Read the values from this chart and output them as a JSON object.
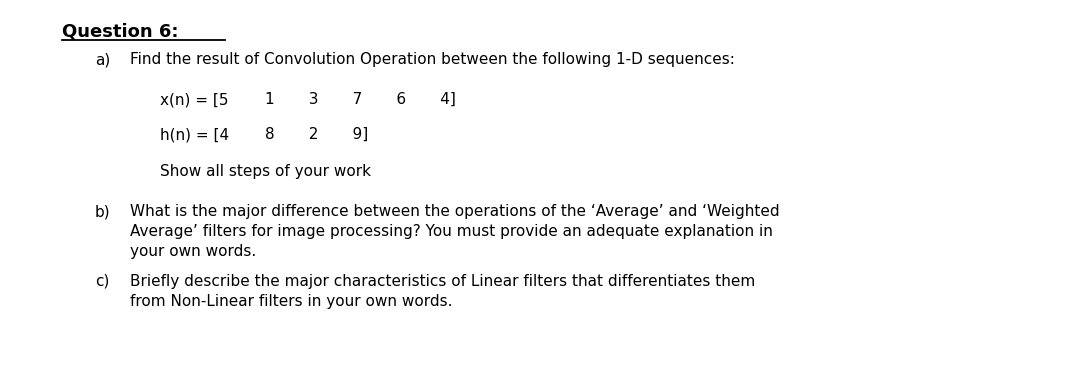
{
  "bg_color": "#ffffff",
  "title": "Question 6:",
  "part_a_label": "a)",
  "part_a_text": "Find the result of Convolution Operation between the following 1-D sequences:",
  "xn_label": "x(n) = [5",
  "xn_values": "1       3       7       6       4]",
  "hn_label": "h(n) = [4",
  "hn_values": "8       2       9]",
  "show_steps": "Show all steps of your work",
  "part_b_label": "b)",
  "part_b_line1": "What is the major difference between the operations of the ‘Average’ and ‘Weighted",
  "part_b_line2": "Average’ filters for image processing? You must provide an adequate explanation in",
  "part_b_line3": "your own words.",
  "part_c_label": "c)",
  "part_c_line1": "Briefly describe the major characteristics of Linear filters that differentiates them",
  "part_c_line2": "from Non-Linear filters in your own words.",
  "title_fs": 13.0,
  "body_fs": 11.0,
  "ff": "DejaVu Sans"
}
